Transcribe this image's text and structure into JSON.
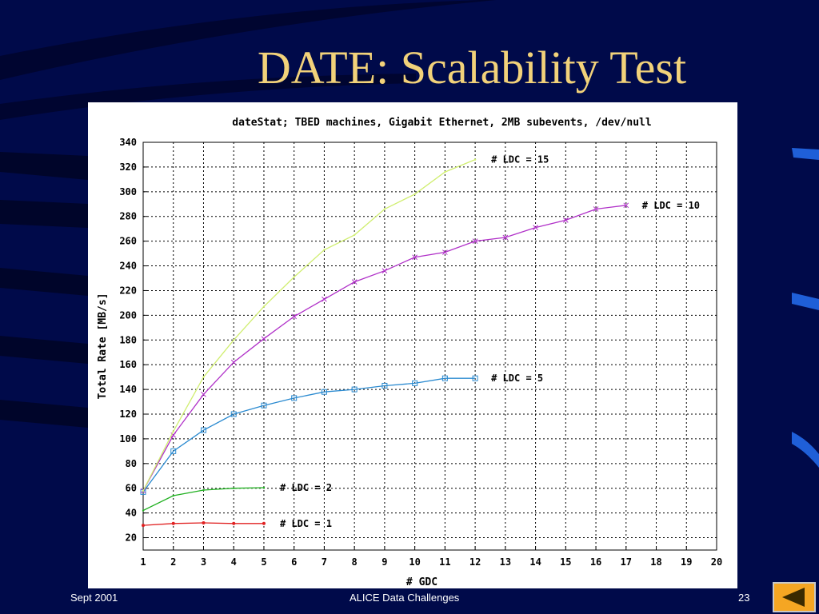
{
  "slide": {
    "title": "DATE: Scalability Test",
    "footer_left": "Sept 2001",
    "footer_center": "ALICE Data Challenges",
    "footer_right": "23"
  },
  "colors": {
    "background": "#000a4a",
    "title": "#f2d27a",
    "nav_button": "#f5a623"
  },
  "icons": {
    "nav": "previous-slide-icon"
  },
  "chart_data": {
    "type": "line",
    "title": "dateStat; TBED machines, Gigabit Ethernet, 2MB subevents, /dev/null",
    "xlabel": "# GDC",
    "ylabel": "Total Rate [MB/s]",
    "xlim": [
      1,
      20
    ],
    "ylim": [
      10,
      340
    ],
    "x_ticks": [
      1,
      2,
      3,
      4,
      5,
      6,
      7,
      8,
      9,
      10,
      11,
      12,
      13,
      14,
      15,
      16,
      17,
      18,
      19,
      20
    ],
    "y_ticks": [
      20,
      40,
      60,
      80,
      100,
      120,
      140,
      160,
      180,
      200,
      220,
      240,
      260,
      280,
      300,
      320,
      340
    ],
    "grid": true,
    "series": [
      {
        "name": "# LDC = 1",
        "color": "#e02020",
        "marker": "dot",
        "x": [
          1,
          2,
          3,
          4,
          5
        ],
        "values": [
          30,
          31.5,
          32,
          31.5,
          31.5
        ]
      },
      {
        "name": "# LDC = 2",
        "color": "#20b020",
        "marker": "none",
        "x": [
          1,
          2,
          3,
          4,
          5
        ],
        "values": [
          42,
          54,
          58.5,
          60,
          60.5
        ]
      },
      {
        "name": "# LDC = 5",
        "color": "#2a8ad0",
        "marker": "square",
        "x": [
          1,
          2,
          3,
          4,
          5,
          6,
          7,
          8,
          9,
          10,
          11,
          12
        ],
        "values": [
          57,
          90,
          107,
          120,
          127,
          133,
          138,
          140,
          143,
          145,
          149,
          149
        ]
      },
      {
        "name": "# LDC = 10",
        "color": "#b030c8",
        "marker": "cross",
        "x": [
          1,
          2,
          3,
          4,
          5,
          6,
          7,
          8,
          9,
          10,
          11,
          12,
          13,
          14,
          15,
          16,
          17
        ],
        "values": [
          58,
          103,
          136,
          162,
          181,
          199,
          213,
          227,
          236,
          247,
          251,
          260,
          263,
          271,
          277,
          286,
          289
        ]
      },
      {
        "name": "# LDC = 15",
        "color": "#d0ee70",
        "marker": "none",
        "x": [
          1,
          2,
          3,
          4,
          5,
          6,
          7,
          8,
          9,
          10,
          11,
          12
        ],
        "values": [
          58,
          106,
          150,
          180,
          207,
          231,
          253,
          265,
          286,
          298,
          316,
          326
        ]
      }
    ]
  }
}
